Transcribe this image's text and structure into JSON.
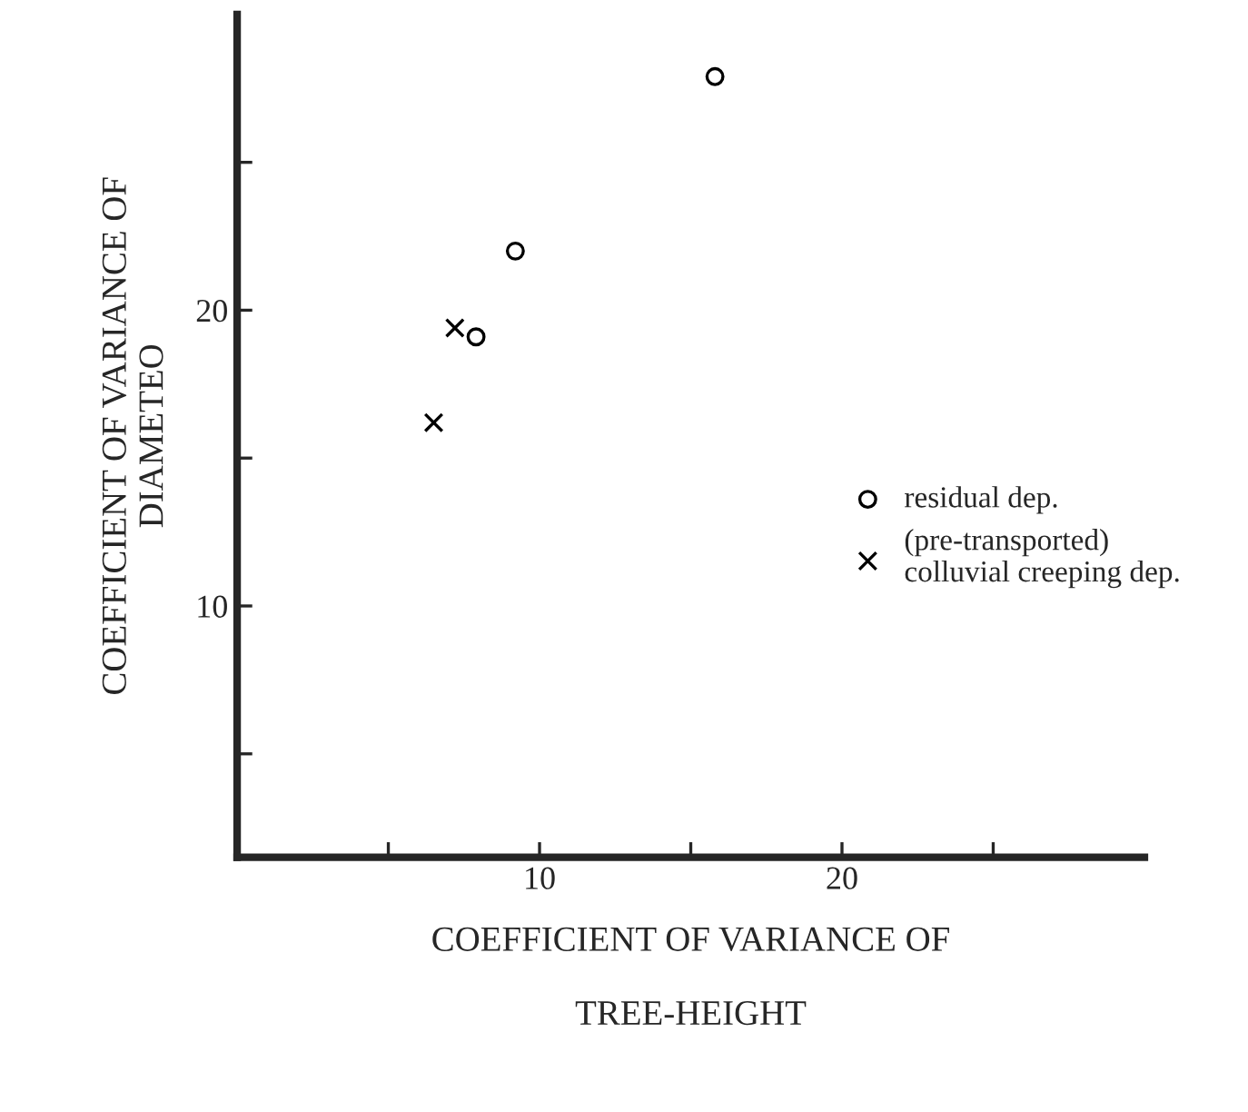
{
  "chart_data": {
    "type": "scatter",
    "xlabel": "COEFFICIENT OF VARIANCE OF\n\nTREE-HEIGHT",
    "ylabel": "COEFFICIENT OF VARIANCE OF\nDIAMETEO",
    "series": [
      {
        "name": "residual dep.",
        "color": "#000000",
        "marker": "circle",
        "x": [
          15.8,
          9.2,
          7.9
        ],
        "values": [
          27.9,
          22.0,
          19.1
        ]
      },
      {
        "name": "(pre-transported)\ncolluvial creeping dep.",
        "color": "#000000",
        "marker": "cross",
        "x": [
          7.2,
          6.5
        ],
        "values": [
          19.4,
          16.2
        ]
      }
    ],
    "xlim": [
      0,
      30
    ],
    "ylim": [
      1.5,
      30
    ],
    "xticks": [
      {
        "value": 5,
        "label": null
      },
      10,
      {
        "value": 15,
        "label": null
      },
      20,
      {
        "value": 25,
        "label": null
      }
    ],
    "yticks": [
      {
        "value": 5,
        "label": null
      },
      10,
      {
        "value": 15,
        "label": null
      },
      20,
      {
        "value": 25,
        "label": null
      }
    ],
    "grid": false,
    "legend": "right"
  }
}
